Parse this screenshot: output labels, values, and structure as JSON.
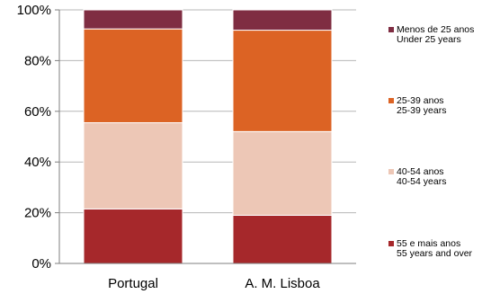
{
  "chart_data": {
    "type": "bar",
    "stacked": true,
    "normalized": true,
    "categories": [
      "Portugal",
      "A. M. Lisboa"
    ],
    "ylim": [
      0,
      100
    ],
    "yticks": [
      "0%",
      "20%",
      "40%",
      "60%",
      "80%",
      "100%"
    ],
    "grid": true,
    "legend_position": "right",
    "series": [
      {
        "label_pt": "55 e mais anos",
        "label_en": "55 years and over",
        "color": "#a6282b",
        "values": [
          21.5,
          19.0
        ]
      },
      {
        "label_pt": "40-54 anos",
        "label_en": "40-54 years",
        "color": "#edc7b6",
        "values": [
          34.0,
          33.0
        ]
      },
      {
        "label_pt": "25-39 anos",
        "label_en": "25-39 years",
        "color": "#dc6324",
        "values": [
          37.0,
          40.0
        ]
      },
      {
        "label_pt": "Menos de 25 anos",
        "label_en": "Under 25 years",
        "color": "#7f2d42",
        "values": [
          7.5,
          8.0
        ]
      }
    ]
  }
}
